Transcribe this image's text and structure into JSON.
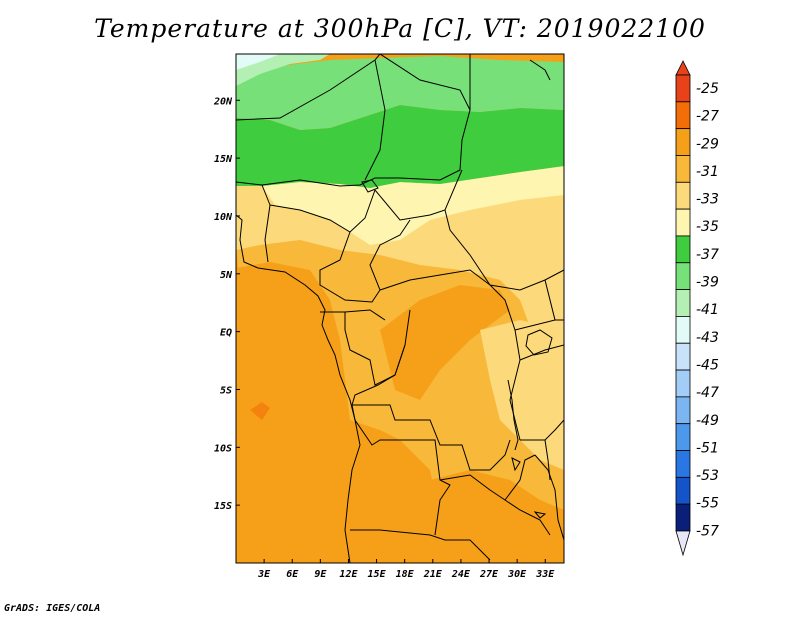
{
  "title": "Temperature at 300hPa [C], VT: 2019022100",
  "footer": "GrADS: IGES/COLA",
  "map": {
    "lon_range": [
      0,
      35
    ],
    "lat_range": [
      -20,
      24
    ],
    "lon_ticks": [
      "3E",
      "6E",
      "9E",
      "12E",
      "15E",
      "18E",
      "21E",
      "24E",
      "27E",
      "30E",
      "33E"
    ],
    "lat_ticks": [
      "20N",
      "15N",
      "10N",
      "5N",
      "EQ",
      "5S",
      "10S",
      "15S"
    ]
  },
  "colorbar": {
    "labels": [
      "-25",
      "-27",
      "-29",
      "-31",
      "-33",
      "-35",
      "-37",
      "-39",
      "-41",
      "-43",
      "-45",
      "-47",
      "-49",
      "-51",
      "-53",
      "-55",
      "-57"
    ],
    "colors": [
      "#e8421a",
      "#f26e08",
      "#f6a01a",
      "#f8b83a",
      "#fcd97a",
      "#fef5b0",
      "#3fcc3f",
      "#78e078",
      "#b4f0b4",
      "#e2fbf6",
      "#c8e2fa",
      "#a2cdf6",
      "#7cb6f2",
      "#4e98ec",
      "#2a76e2",
      "#1553c8",
      "#0a1f7a"
    ],
    "top_cap_color": "#e8421a",
    "bottom_cap_color": "#e6e6f6"
  },
  "palette": {
    "light_green": "#b4f0b4",
    "mid_green": "#78e078",
    "dark_green": "#3fcc3f",
    "pale_yellow": "#fef5b0",
    "yellow": "#fcd97a",
    "light_orange": "#f8b83a",
    "orange": "#f6a01a",
    "very_light": "#e2fbf6"
  }
}
